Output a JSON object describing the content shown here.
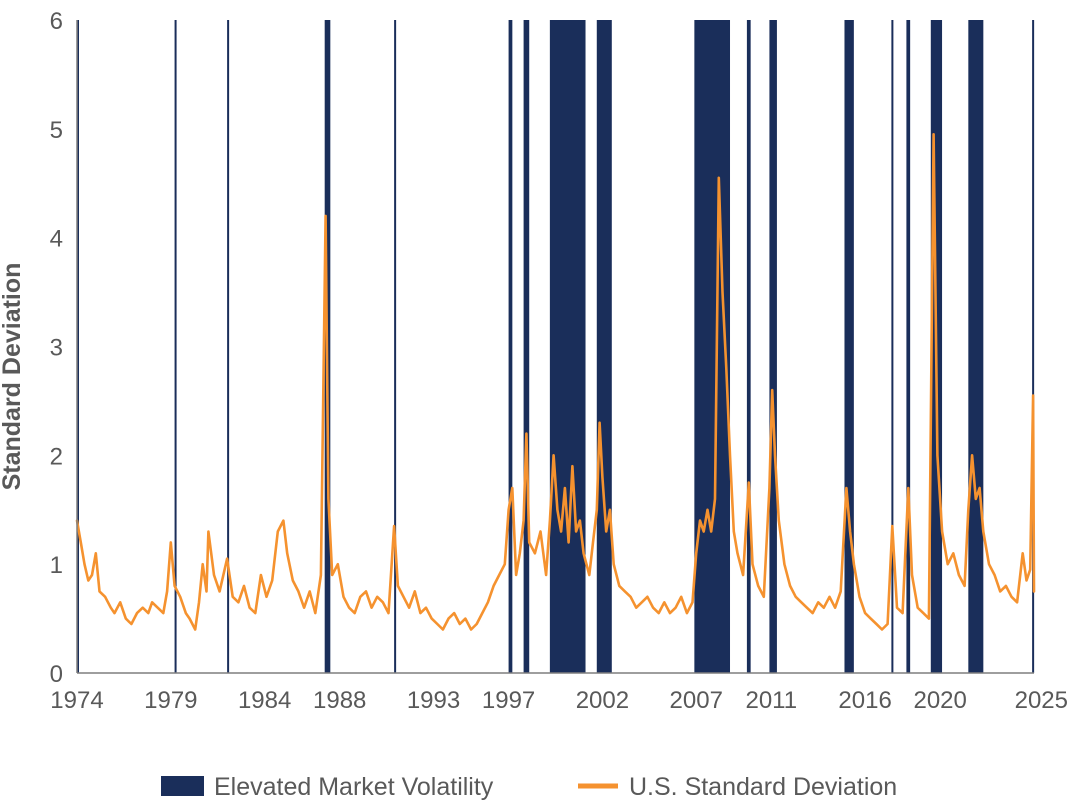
{
  "chart_data": {
    "type": "line",
    "ylabel": "Standard Deviation",
    "xlabel": "",
    "x_range": [
      1974,
      2025
    ],
    "ylim": [
      0,
      6
    ],
    "y_ticks": [
      "0",
      "1",
      "2",
      "3",
      "4",
      "5",
      "6"
    ],
    "x_ticks": [
      {
        "value": 1974,
        "label": "1974"
      },
      {
        "value": 1979,
        "label": "1979"
      },
      {
        "value": 1984,
        "label": "1984"
      },
      {
        "value": 1988,
        "label": "1988"
      },
      {
        "value": 1993,
        "label": "1993"
      },
      {
        "value": 1997,
        "label": "1997"
      },
      {
        "value": 2002,
        "label": "2002"
      },
      {
        "value": 2007,
        "label": "2007"
      },
      {
        "value": 2011,
        "label": "2011"
      },
      {
        "value": 2016,
        "label": "2016"
      },
      {
        "value": 2020,
        "label": "2020"
      },
      {
        "value": 2025,
        "label": "2025"
      }
    ],
    "grid": false,
    "legend_position": "bottom",
    "legend": [
      {
        "label": "Elevated Market Volatility",
        "color": "#1a2e5a",
        "kind": "area"
      },
      {
        "label": "U.S. Standard Deviation",
        "color": "#f5922f",
        "kind": "line"
      }
    ],
    "volatility_periods": [
      {
        "start": 1974.0,
        "end": 1974.08
      },
      {
        "start": 1979.2,
        "end": 1979.28
      },
      {
        "start": 1982.0,
        "end": 1982.08
      },
      {
        "start": 1987.2,
        "end": 1987.5
      },
      {
        "start": 1990.9,
        "end": 1990.98
      },
      {
        "start": 1997.0,
        "end": 1997.2
      },
      {
        "start": 1997.8,
        "end": 1998.1
      },
      {
        "start": 1999.2,
        "end": 2001.1
      },
      {
        "start": 2001.7,
        "end": 2002.5
      },
      {
        "start": 2006.9,
        "end": 2008.8
      },
      {
        "start": 2009.7,
        "end": 2009.9
      },
      {
        "start": 2010.9,
        "end": 2011.3
      },
      {
        "start": 2014.9,
        "end": 2015.4
      },
      {
        "start": 2017.4,
        "end": 2017.5
      },
      {
        "start": 2018.2,
        "end": 2018.4
      },
      {
        "start": 2019.5,
        "end": 2020.1
      },
      {
        "start": 2021.5,
        "end": 2022.3
      },
      {
        "start": 2024.9,
        "end": 2025.0
      }
    ],
    "series": [
      {
        "name": "U.S. Standard Deviation",
        "color": "#f5922f",
        "points": [
          [
            1974.0,
            1.4
          ],
          [
            1974.2,
            1.2
          ],
          [
            1974.4,
            1.0
          ],
          [
            1974.6,
            0.85
          ],
          [
            1974.8,
            0.9
          ],
          [
            1975.0,
            1.1
          ],
          [
            1975.2,
            0.75
          ],
          [
            1975.5,
            0.7
          ],
          [
            1975.8,
            0.6
          ],
          [
            1976.0,
            0.55
          ],
          [
            1976.3,
            0.65
          ],
          [
            1976.6,
            0.5
          ],
          [
            1976.9,
            0.45
          ],
          [
            1977.2,
            0.55
          ],
          [
            1977.5,
            0.6
          ],
          [
            1977.8,
            0.55
          ],
          [
            1978.0,
            0.65
          ],
          [
            1978.3,
            0.6
          ],
          [
            1978.6,
            0.55
          ],
          [
            1978.8,
            0.75
          ],
          [
            1979.0,
            1.2
          ],
          [
            1979.2,
            0.8
          ],
          [
            1979.5,
            0.7
          ],
          [
            1979.8,
            0.55
          ],
          [
            1980.0,
            0.5
          ],
          [
            1980.3,
            0.4
          ],
          [
            1980.5,
            0.65
          ],
          [
            1980.7,
            1.0
          ],
          [
            1980.9,
            0.75
          ],
          [
            1981.0,
            1.3
          ],
          [
            1981.3,
            0.9
          ],
          [
            1981.6,
            0.75
          ],
          [
            1982.0,
            1.05
          ],
          [
            1982.3,
            0.7
          ],
          [
            1982.6,
            0.65
          ],
          [
            1982.9,
            0.8
          ],
          [
            1983.2,
            0.6
          ],
          [
            1983.5,
            0.55
          ],
          [
            1983.8,
            0.9
          ],
          [
            1984.1,
            0.7
          ],
          [
            1984.4,
            0.85
          ],
          [
            1984.7,
            1.3
          ],
          [
            1985.0,
            1.4
          ],
          [
            1985.2,
            1.1
          ],
          [
            1985.5,
            0.85
          ],
          [
            1985.8,
            0.75
          ],
          [
            1986.1,
            0.6
          ],
          [
            1986.4,
            0.75
          ],
          [
            1986.7,
            0.55
          ],
          [
            1987.0,
            0.9
          ],
          [
            1987.25,
            4.2
          ],
          [
            1987.4,
            1.6
          ],
          [
            1987.6,
            0.9
          ],
          [
            1987.9,
            1.0
          ],
          [
            1988.2,
            0.7
          ],
          [
            1988.5,
            0.6
          ],
          [
            1988.8,
            0.55
          ],
          [
            1989.1,
            0.7
          ],
          [
            1989.4,
            0.75
          ],
          [
            1989.7,
            0.6
          ],
          [
            1990.0,
            0.7
          ],
          [
            1990.3,
            0.65
          ],
          [
            1990.6,
            0.55
          ],
          [
            1990.9,
            1.35
          ],
          [
            1991.1,
            0.8
          ],
          [
            1991.4,
            0.7
          ],
          [
            1991.7,
            0.6
          ],
          [
            1992.0,
            0.75
          ],
          [
            1992.3,
            0.55
          ],
          [
            1992.6,
            0.6
          ],
          [
            1992.9,
            0.5
          ],
          [
            1993.2,
            0.45
          ],
          [
            1993.5,
            0.4
          ],
          [
            1993.8,
            0.5
          ],
          [
            1994.1,
            0.55
          ],
          [
            1994.4,
            0.45
          ],
          [
            1994.7,
            0.5
          ],
          [
            1995.0,
            0.4
          ],
          [
            1995.3,
            0.45
          ],
          [
            1995.6,
            0.55
          ],
          [
            1995.9,
            0.65
          ],
          [
            1996.2,
            0.8
          ],
          [
            1996.5,
            0.9
          ],
          [
            1996.8,
            1.0
          ],
          [
            1997.0,
            1.5
          ],
          [
            1997.2,
            1.7
          ],
          [
            1997.4,
            0.9
          ],
          [
            1997.6,
            1.1
          ],
          [
            1997.8,
            1.4
          ],
          [
            1997.95,
            2.2
          ],
          [
            1998.1,
            1.2
          ],
          [
            1998.4,
            1.1
          ],
          [
            1998.7,
            1.3
          ],
          [
            1999.0,
            0.9
          ],
          [
            1999.2,
            1.4
          ],
          [
            1999.4,
            2.0
          ],
          [
            1999.6,
            1.5
          ],
          [
            1999.8,
            1.3
          ],
          [
            2000.0,
            1.7
          ],
          [
            2000.2,
            1.2
          ],
          [
            2000.4,
            1.9
          ],
          [
            2000.6,
            1.3
          ],
          [
            2000.8,
            1.4
          ],
          [
            2001.0,
            1.1
          ],
          [
            2001.3,
            0.9
          ],
          [
            2001.5,
            1.2
          ],
          [
            2001.7,
            1.5
          ],
          [
            2001.85,
            2.3
          ],
          [
            2002.0,
            1.8
          ],
          [
            2002.2,
            1.3
          ],
          [
            2002.4,
            1.5
          ],
          [
            2002.6,
            1.0
          ],
          [
            2002.9,
            0.8
          ],
          [
            2003.2,
            0.75
          ],
          [
            2003.5,
            0.7
          ],
          [
            2003.8,
            0.6
          ],
          [
            2004.1,
            0.65
          ],
          [
            2004.4,
            0.7
          ],
          [
            2004.7,
            0.6
          ],
          [
            2005.0,
            0.55
          ],
          [
            2005.3,
            0.65
          ],
          [
            2005.6,
            0.55
          ],
          [
            2005.9,
            0.6
          ],
          [
            2006.2,
            0.7
          ],
          [
            2006.5,
            0.55
          ],
          [
            2006.8,
            0.65
          ],
          [
            2007.0,
            1.1
          ],
          [
            2007.2,
            1.4
          ],
          [
            2007.4,
            1.3
          ],
          [
            2007.6,
            1.5
          ],
          [
            2007.8,
            1.3
          ],
          [
            2008.0,
            1.6
          ],
          [
            2008.2,
            4.55
          ],
          [
            2008.4,
            3.5
          ],
          [
            2008.6,
            2.8
          ],
          [
            2008.8,
            2.0
          ],
          [
            2009.0,
            1.3
          ],
          [
            2009.2,
            1.1
          ],
          [
            2009.5,
            0.9
          ],
          [
            2009.8,
            1.75
          ],
          [
            2010.0,
            1.0
          ],
          [
            2010.3,
            0.8
          ],
          [
            2010.6,
            0.7
          ],
          [
            2010.9,
            1.7
          ],
          [
            2011.05,
            2.6
          ],
          [
            2011.2,
            2.0
          ],
          [
            2011.4,
            1.4
          ],
          [
            2011.7,
            1.0
          ],
          [
            2012.0,
            0.8
          ],
          [
            2012.3,
            0.7
          ],
          [
            2012.6,
            0.65
          ],
          [
            2012.9,
            0.6
          ],
          [
            2013.2,
            0.55
          ],
          [
            2013.5,
            0.65
          ],
          [
            2013.8,
            0.6
          ],
          [
            2014.1,
            0.7
          ],
          [
            2014.4,
            0.6
          ],
          [
            2014.7,
            0.75
          ],
          [
            2015.0,
            1.7
          ],
          [
            2015.2,
            1.3
          ],
          [
            2015.4,
            1.0
          ],
          [
            2015.7,
            0.7
          ],
          [
            2016.0,
            0.55
          ],
          [
            2016.3,
            0.5
          ],
          [
            2016.6,
            0.45
          ],
          [
            2016.9,
            0.4
          ],
          [
            2017.2,
            0.45
          ],
          [
            2017.45,
            1.35
          ],
          [
            2017.7,
            0.6
          ],
          [
            2018.0,
            0.55
          ],
          [
            2018.3,
            1.7
          ],
          [
            2018.5,
            0.9
          ],
          [
            2018.8,
            0.6
          ],
          [
            2019.1,
            0.55
          ],
          [
            2019.4,
            0.5
          ],
          [
            2019.65,
            4.95
          ],
          [
            2019.85,
            2.0
          ],
          [
            2020.1,
            1.3
          ],
          [
            2020.4,
            1.0
          ],
          [
            2020.7,
            1.1
          ],
          [
            2021.0,
            0.9
          ],
          [
            2021.3,
            0.8
          ],
          [
            2021.5,
            1.5
          ],
          [
            2021.7,
            2.0
          ],
          [
            2021.9,
            1.6
          ],
          [
            2022.1,
            1.7
          ],
          [
            2022.3,
            1.3
          ],
          [
            2022.6,
            1.0
          ],
          [
            2022.9,
            0.9
          ],
          [
            2023.2,
            0.75
          ],
          [
            2023.5,
            0.8
          ],
          [
            2023.8,
            0.7
          ],
          [
            2024.1,
            0.65
          ],
          [
            2024.4,
            1.1
          ],
          [
            2024.6,
            0.85
          ],
          [
            2024.8,
            0.95
          ],
          [
            2024.95,
            2.55
          ],
          [
            2025.0,
            0.75
          ]
        ]
      }
    ]
  }
}
